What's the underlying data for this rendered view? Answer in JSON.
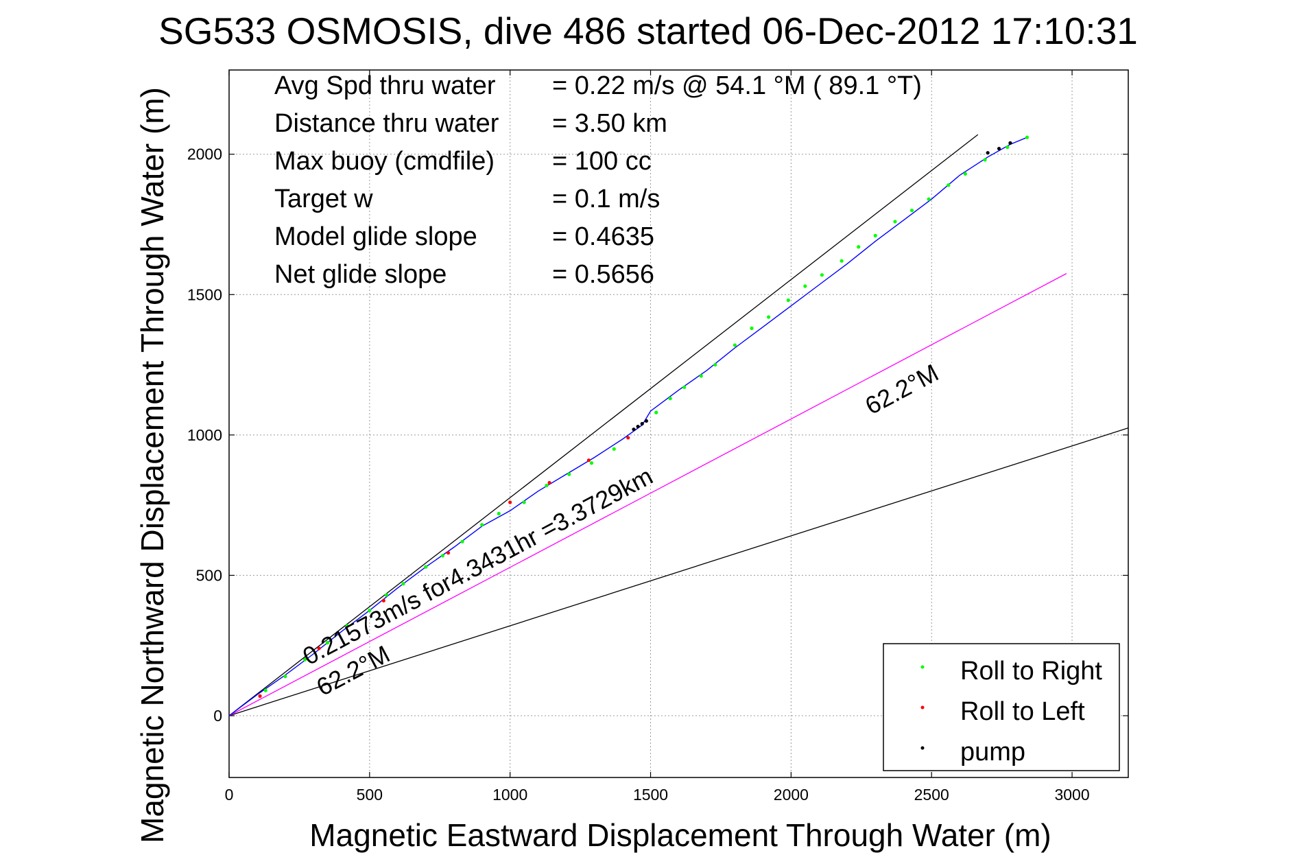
{
  "chart_data": {
    "type": "line",
    "title": "SG533 OSMOSIS, dive 486 started 06-Dec-2012 17:10:31",
    "xlabel": "Magnetic Eastward Displacement Through Water (m)",
    "ylabel": "Magnetic Northward Displacement Through Water (m)",
    "xlim": [
      0,
      3200
    ],
    "ylim": [
      -220,
      2300
    ],
    "xticks": [
      0,
      500,
      1000,
      1500,
      2000,
      2500,
      3000
    ],
    "yticks": [
      0,
      500,
      1000,
      1500,
      2000
    ],
    "grid": true,
    "legend_position": "bottom-right",
    "info_lines": [
      {
        "label": "Avg Spd thru water",
        "value": "=  0.22 m/s @  54.1 °M ( 89.1 °T)"
      },
      {
        "label": "Distance thru water",
        "value": "=  3.50 km"
      },
      {
        "label": "Max buoy (cmdfile)",
        "value": "= 100 cc"
      },
      {
        "label": "Target w",
        "value": "= 0.1 m/s"
      },
      {
        "label": "Model glide slope",
        "value": "= 0.4635"
      },
      {
        "label": "Net glide slope",
        "value": "= 0.5656"
      }
    ],
    "annotations": {
      "heading_upper": "62.2°M",
      "heading_lower": "62.2°M",
      "speed_text": "0.21573m/s for4.3431hr =3.3729km"
    },
    "legend": [
      {
        "label": "Roll to Right",
        "color": "#00ff00"
      },
      {
        "label": "Roll to Left",
        "color": "#ff0000"
      },
      {
        "label": "pump",
        "color": "#000000"
      }
    ],
    "reference_lines": [
      {
        "name": "upper-bound",
        "x": [
          0,
          2665
        ],
        "y": [
          0,
          2070
        ],
        "color": "#000000"
      },
      {
        "name": "lower-bound",
        "x": [
          0,
          3200
        ],
        "y": [
          0,
          1025
        ],
        "color": "#000000"
      },
      {
        "name": "heading",
        "x": [
          0,
          2980
        ],
        "y": [
          0,
          1575
        ],
        "color": "#ff00ff"
      }
    ],
    "series": [
      {
        "kind": "track",
        "color": "#0000ff",
        "x": [
          0,
          100,
          200,
          300,
          400,
          500,
          600,
          700,
          800,
          900,
          1000,
          1100,
          1200,
          1300,
          1400,
          1470,
          1500,
          1600,
          1700,
          1800,
          1900,
          2000,
          2100,
          2200,
          2300,
          2400,
          2500,
          2600,
          2700,
          2780,
          2840
        ],
        "y": [
          0,
          75,
          145,
          220,
          300,
          375,
          455,
          530,
          600,
          675,
          730,
          800,
          860,
          920,
          985,
          1035,
          1085,
          1160,
          1230,
          1310,
          1385,
          1460,
          1535,
          1610,
          1690,
          1765,
          1840,
          1925,
          1990,
          2035,
          2060
        ]
      },
      {
        "kind": "points",
        "color": "#00ff00",
        "x": [
          130,
          200,
          270,
          350,
          420,
          500,
          560,
          620,
          700,
          760,
          830,
          900,
          960,
          1050,
          1130,
          1210,
          1290,
          1370,
          1520,
          1570,
          1620,
          1680,
          1730,
          1800,
          1860,
          1920,
          1990,
          2050,
          2110,
          2180,
          2240,
          2300,
          2370,
          2430,
          2490,
          2560,
          2620,
          2690,
          2770,
          2840
        ],
        "y": [
          90,
          140,
          200,
          260,
          320,
          375,
          430,
          470,
          530,
          570,
          620,
          680,
          720,
          760,
          820,
          860,
          900,
          950,
          1080,
          1130,
          1170,
          1210,
          1250,
          1320,
          1380,
          1420,
          1480,
          1530,
          1570,
          1620,
          1670,
          1710,
          1760,
          1800,
          1840,
          1890,
          1930,
          1980,
          2025,
          2060
        ]
      },
      {
        "kind": "points",
        "color": "#ff0000",
        "x": [
          110,
          320,
          550,
          780,
          1000,
          1140,
          1280,
          1420
        ],
        "y": [
          70,
          240,
          410,
          580,
          760,
          830,
          910,
          990
        ]
      },
      {
        "kind": "points",
        "color": "#000000",
        "x": [
          1440,
          1455,
          1470,
          1485,
          2700,
          2740,
          2780
        ],
        "y": [
          1020,
          1030,
          1040,
          1050,
          2005,
          2020,
          2040
        ]
      }
    ]
  }
}
